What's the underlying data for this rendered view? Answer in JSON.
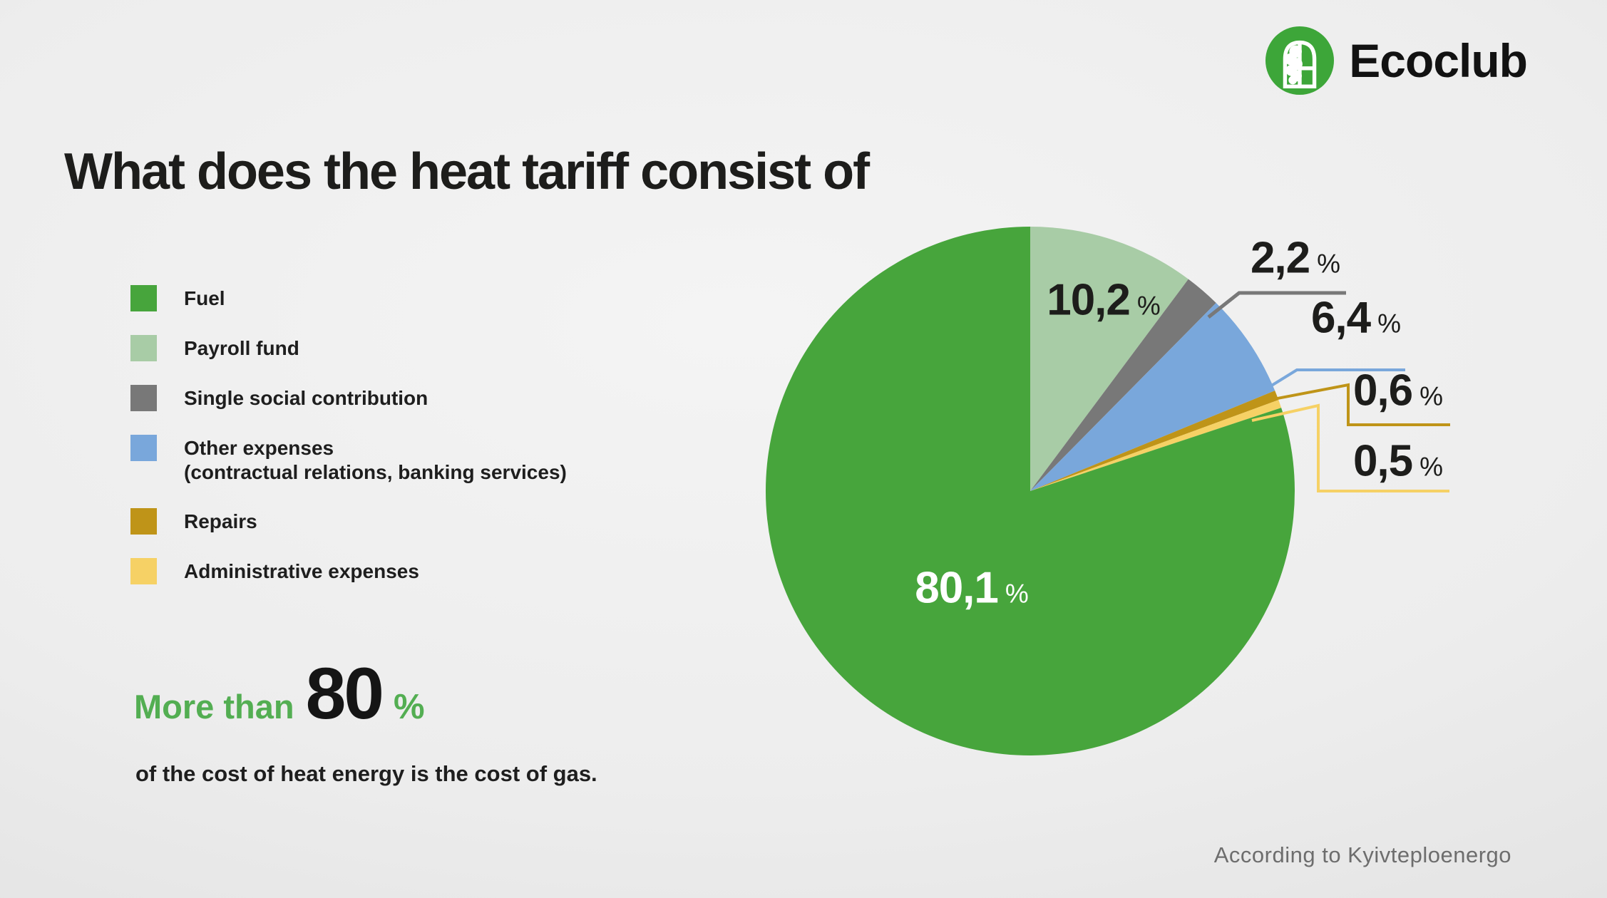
{
  "logo": {
    "text": "Ecoclub",
    "icon": "ecoclub-window-tree-icon",
    "brand_color": "#3DA639"
  },
  "title": "What does the heat tariff consist of",
  "legend": {
    "items": [
      {
        "label": "Fuel",
        "color": "#47A53C"
      },
      {
        "label": "Payroll fund",
        "color": "#A8CCA6"
      },
      {
        "label": "Single social contribution",
        "color": "#787878"
      },
      {
        "label": "Other expenses",
        "sublabel": "(contractual relations, banking services)",
        "color": "#79A7DB"
      },
      {
        "label": "Repairs",
        "color": "#BF9418"
      },
      {
        "label": "Administrative expenses",
        "color": "#F6D165"
      }
    ]
  },
  "highlight": {
    "prefix": "More than",
    "value": "80",
    "unit": "%",
    "description": "of the cost of heat energy is the cost of gas.",
    "accent_color": "#53AE52"
  },
  "source": "According to Kyivteploenergo",
  "chart_data": {
    "type": "pie",
    "title": "What does the heat tariff consist of",
    "unit": "%",
    "start_angle": "12-oclock",
    "direction": "clockwise",
    "slices": [
      {
        "label": "Payroll fund",
        "value": 10.2,
        "display": "10,2",
        "color": "#A8CCA6",
        "label_placement": "inside"
      },
      {
        "label": "Single social contribution",
        "value": 2.2,
        "display": "2,2",
        "color": "#787878",
        "label_placement": "callout"
      },
      {
        "label": "Other expenses (contractual relations, banking services)",
        "value": 6.4,
        "display": "6,4",
        "color": "#79A7DB",
        "label_placement": "callout"
      },
      {
        "label": "Repairs",
        "value": 0.6,
        "display": "0,6",
        "color": "#BF9418",
        "label_placement": "callout"
      },
      {
        "label": "Administrative expenses",
        "value": 0.5,
        "display": "0,5",
        "color": "#F6D165",
        "label_placement": "callout"
      },
      {
        "label": "Fuel",
        "value": 80.1,
        "display": "80,1",
        "color": "#47A53C",
        "label_placement": "inside"
      }
    ]
  }
}
